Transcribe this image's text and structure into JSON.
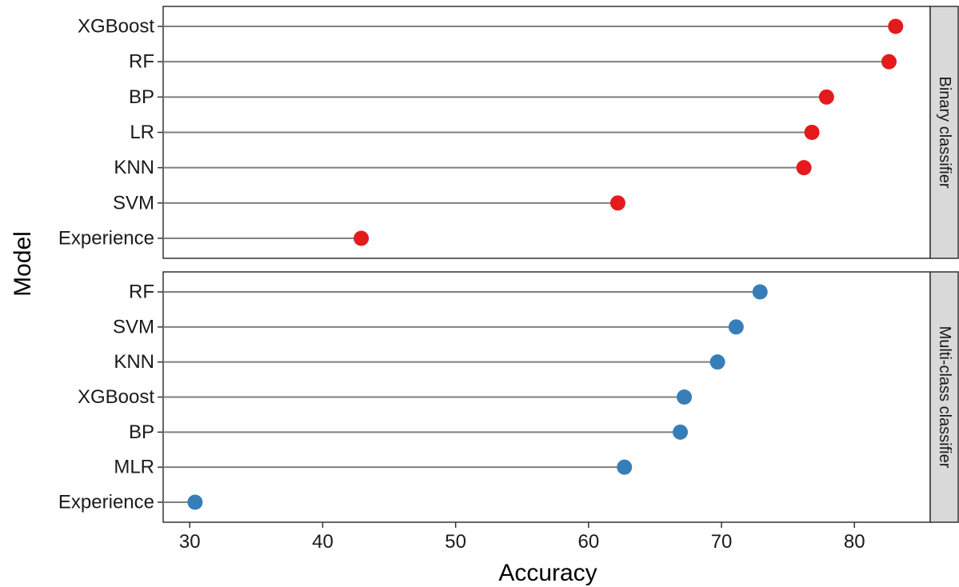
{
  "chart_data": {
    "type": "scatter",
    "style": "lollipop",
    "xlabel": "Accuracy",
    "ylabel": "Model",
    "xlim": [
      28,
      85.7
    ],
    "x_ticks": [
      30,
      40,
      50,
      60,
      70,
      80
    ],
    "grid": false,
    "legend": "none",
    "panels": [
      {
        "name": "Binary classifier",
        "color": "#e41a1c",
        "categories": [
          "XGBoost",
          "RF",
          "BP",
          "LR",
          "KNN",
          "SVM",
          "Experience"
        ],
        "values": [
          83.1,
          82.6,
          77.9,
          76.8,
          76.2,
          62.2,
          42.9
        ]
      },
      {
        "name": "Multi-class classifier",
        "color": "#377eb8",
        "categories": [
          "RF",
          "SVM",
          "KNN",
          "XGBoost",
          "BP",
          "MLR",
          "Experience"
        ],
        "values": [
          72.9,
          71.1,
          69.7,
          67.2,
          66.9,
          62.7,
          30.4
        ]
      }
    ]
  }
}
